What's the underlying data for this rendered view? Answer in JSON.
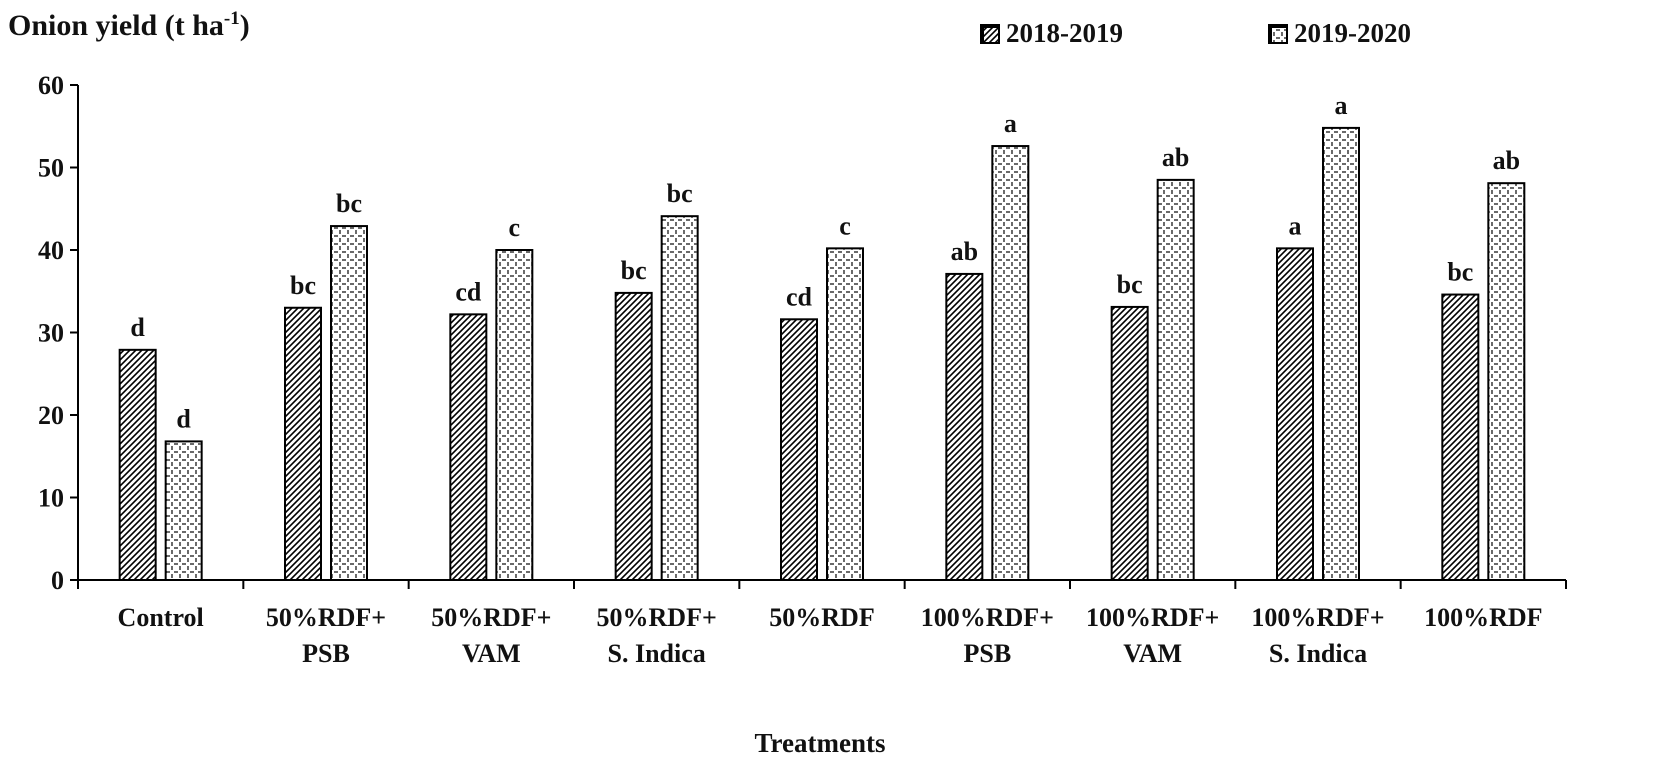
{
  "chart_data": {
    "type": "bar",
    "title": "",
    "ylabel": "Onion yield (t ha",
    "ylabel_superscript": "-1",
    "ylabel_close": ")",
    "xlabel": "Treatments",
    "ylim": [
      0,
      60
    ],
    "yticks": [
      "0",
      "10",
      "20",
      "30",
      "40",
      "50",
      "60"
    ],
    "legend_position": "top-right",
    "categories": [
      [
        "Control",
        ""
      ],
      [
        "50%RDF+",
        "PSB"
      ],
      [
        "50%RDF+",
        "VAM"
      ],
      [
        "50%RDF+",
        "S. Indica"
      ],
      [
        "50%RDF",
        ""
      ],
      [
        "100%RDF+",
        "PSB"
      ],
      [
        "100%RDF+",
        "VAM"
      ],
      [
        "100%RDF+",
        "S. Indica"
      ],
      [
        "100%RDF",
        ""
      ]
    ],
    "series": [
      {
        "name": "2018-2019",
        "pattern": "diagonal-hatch",
        "values": [
          27.9,
          33.0,
          32.2,
          34.8,
          31.6,
          37.1,
          33.1,
          40.2,
          34.6
        ],
        "labels": [
          "d",
          "bc",
          "cd",
          "bc",
          "cd",
          "ab",
          "bc",
          "a",
          "bc"
        ]
      },
      {
        "name": "2019-2020",
        "pattern": "dotted-diamond",
        "values": [
          16.8,
          42.9,
          40.0,
          44.1,
          40.2,
          52.6,
          48.5,
          54.8,
          48.1
        ],
        "labels": [
          "d",
          "bc",
          "c",
          "bc",
          "c",
          "a",
          "ab",
          "a",
          "ab"
        ]
      }
    ]
  }
}
